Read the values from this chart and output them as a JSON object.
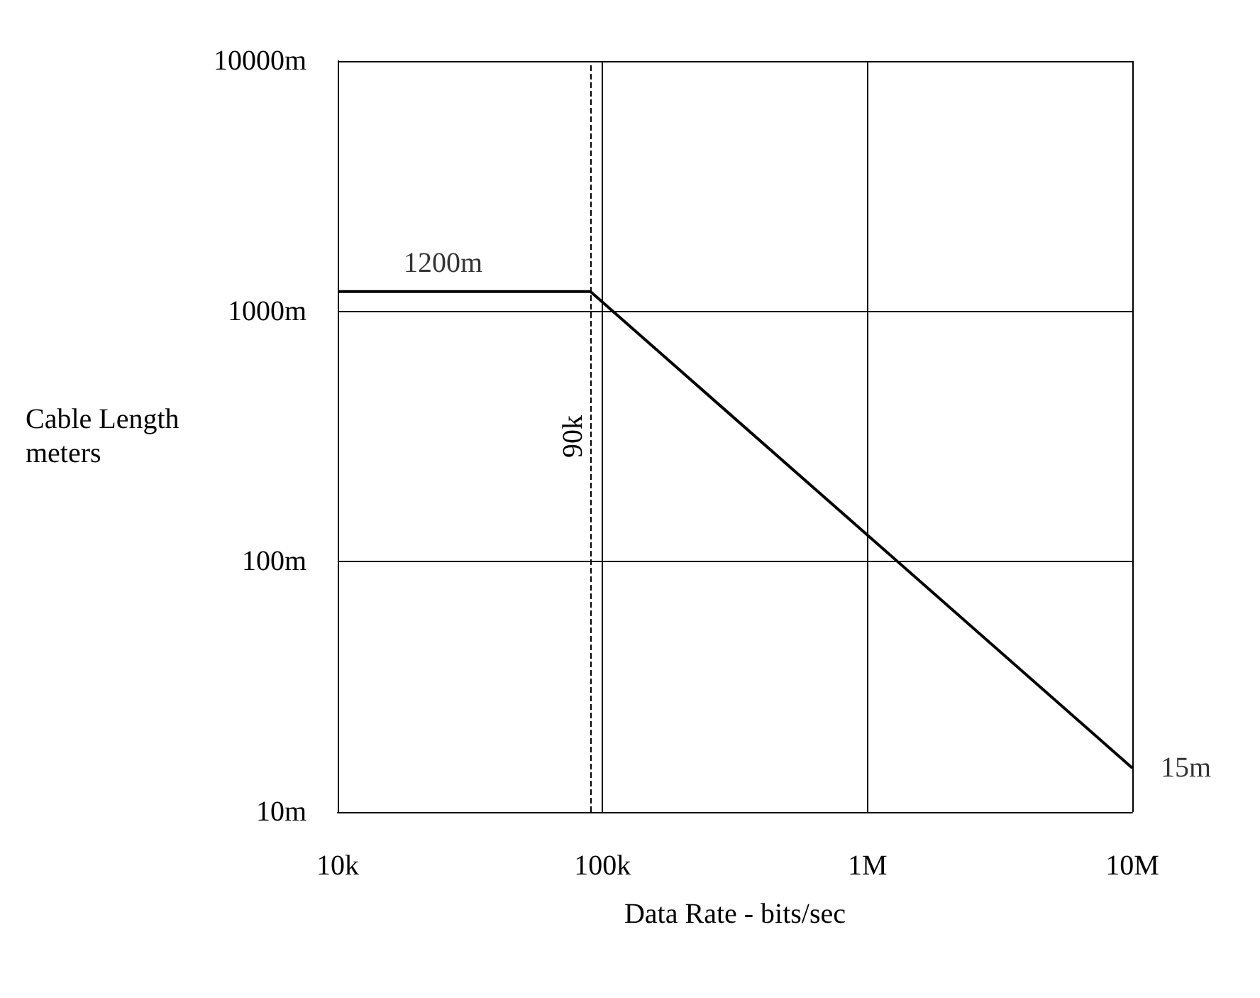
{
  "chart_data": {
    "type": "line",
    "xlabel": "Data Rate - bits/sec",
    "ylabel": "Cable Length\nmeters",
    "log": "xy",
    "grid": true,
    "marker": "none",
    "line_style": "solid",
    "x": [
      10000,
      90000,
      10000000
    ],
    "series": [
      {
        "color": "#000000",
        "values": [
          1200,
          1200,
          15
        ]
      }
    ],
    "xlim": [
      10000,
      10000000
    ],
    "xticks": [
      {
        "value": 10000,
        "label": "10k"
      },
      {
        "value": 100000,
        "label": "100k"
      },
      {
        "value": 1000000,
        "label": "1M"
      },
      {
        "value": 10000000,
        "label": "10M"
      }
    ],
    "ylim": [
      10,
      10000
    ],
    "yticks": [
      {
        "value": 10,
        "label": "10m"
      },
      {
        "value": 100,
        "label": "100m"
      },
      {
        "value": 1000,
        "label": "1000m"
      },
      {
        "value": 10000,
        "label": "10000m"
      }
    ],
    "ref_lines": [
      {
        "axis": "x",
        "value": 90000,
        "label": "90k",
        "line_style": "dashed",
        "color": "#000000"
      }
    ],
    "annotations": [
      {
        "text": "1200m",
        "x": 25000,
        "y": 1200
      },
      {
        "text": "15m",
        "x": 10000000,
        "y": 15
      }
    ]
  }
}
